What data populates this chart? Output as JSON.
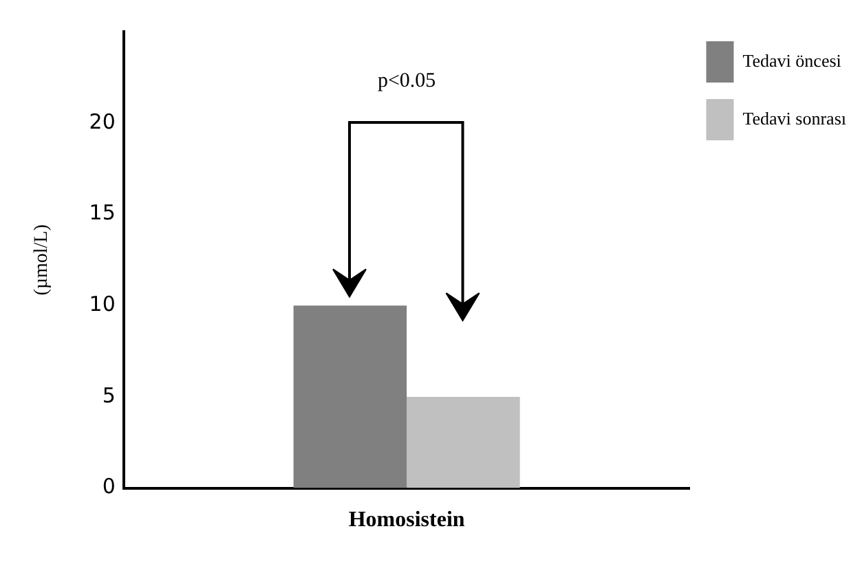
{
  "chart_data": {
    "type": "bar",
    "categories": [
      "Homosistein"
    ],
    "ylabel": "(µmol/L)",
    "series": [
      {
        "name": "Tedavi öncesi",
        "color": "#808080",
        "values": [
          10
        ]
      },
      {
        "name": "Tedavi sonrası",
        "color": "#c0c0c0",
        "values": [
          5
        ]
      }
    ],
    "ylim": [
      0,
      25
    ],
    "yticks": [
      0,
      5,
      10,
      15,
      20
    ],
    "grid": false,
    "legend": "top right",
    "annotations": [
      "p<0.05"
    ]
  }
}
